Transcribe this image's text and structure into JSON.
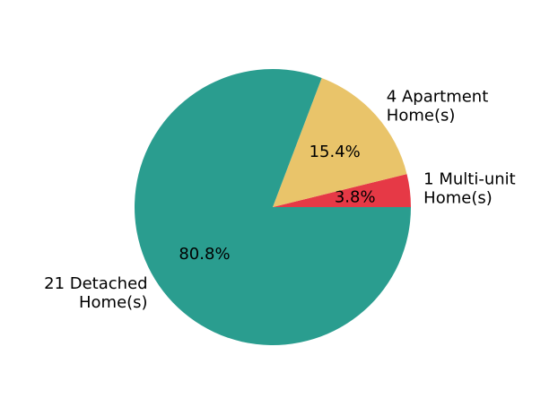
{
  "chart_data": {
    "type": "pie",
    "title": "",
    "slices": [
      {
        "label_lines": [
          "1 Multi-unit",
          "Home(s)"
        ],
        "value": 1,
        "percent_label": "3.8%",
        "color": "#e63946"
      },
      {
        "label_lines": [
          "4 Apartment",
          "Home(s)"
        ],
        "value": 4,
        "percent_label": "15.4%",
        "color": "#e9c46a"
      },
      {
        "label_lines": [
          "21 Detached",
          "Home(s)"
        ],
        "value": 21,
        "percent_label": "80.8%",
        "color": "#2a9d8f"
      }
    ],
    "start_angle_deg": 0,
    "direction": "counterclockwise",
    "legend": "none"
  }
}
